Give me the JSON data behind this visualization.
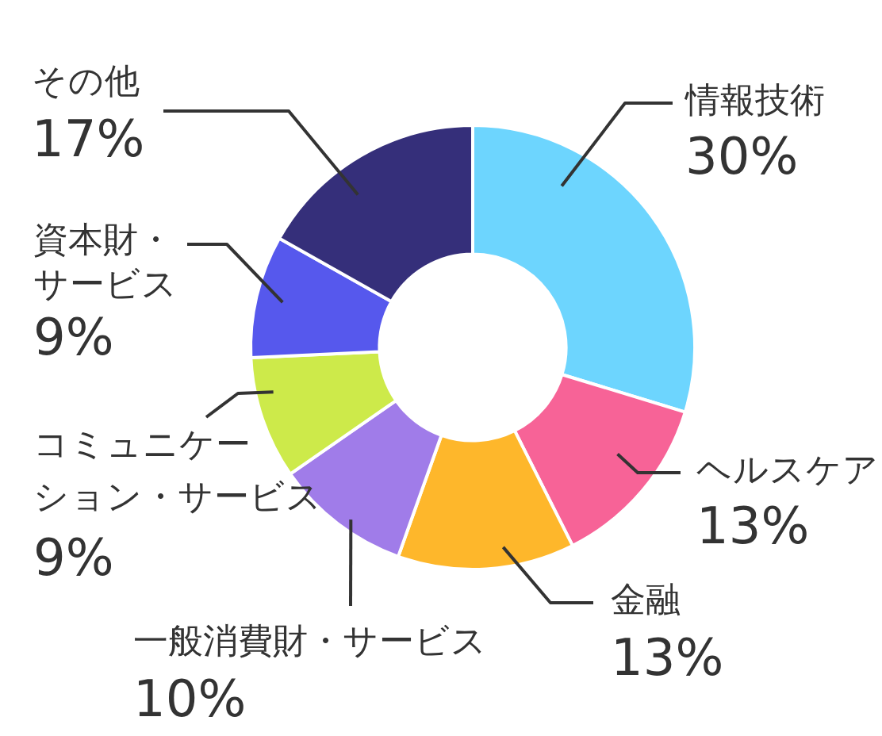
{
  "chart_data": {
    "type": "donut",
    "categories": [
      "情報技術",
      "ヘルスケア",
      "金融",
      "一般消費財・サービス",
      "コミュニケーション・サービス",
      "資本財・サービス",
      "その他"
    ],
    "values": [
      30,
      13,
      13,
      10,
      9,
      9,
      17
    ],
    "colors": [
      "#6dd5fe",
      "#f76397",
      "#feb72b",
      "#a07ce9",
      "#cdea4a",
      "#5658ed",
      "#352f7a"
    ],
    "value_labels": [
      "30%",
      "13%",
      "13%",
      "10%",
      "9%",
      "9%",
      "17%"
    ]
  }
}
